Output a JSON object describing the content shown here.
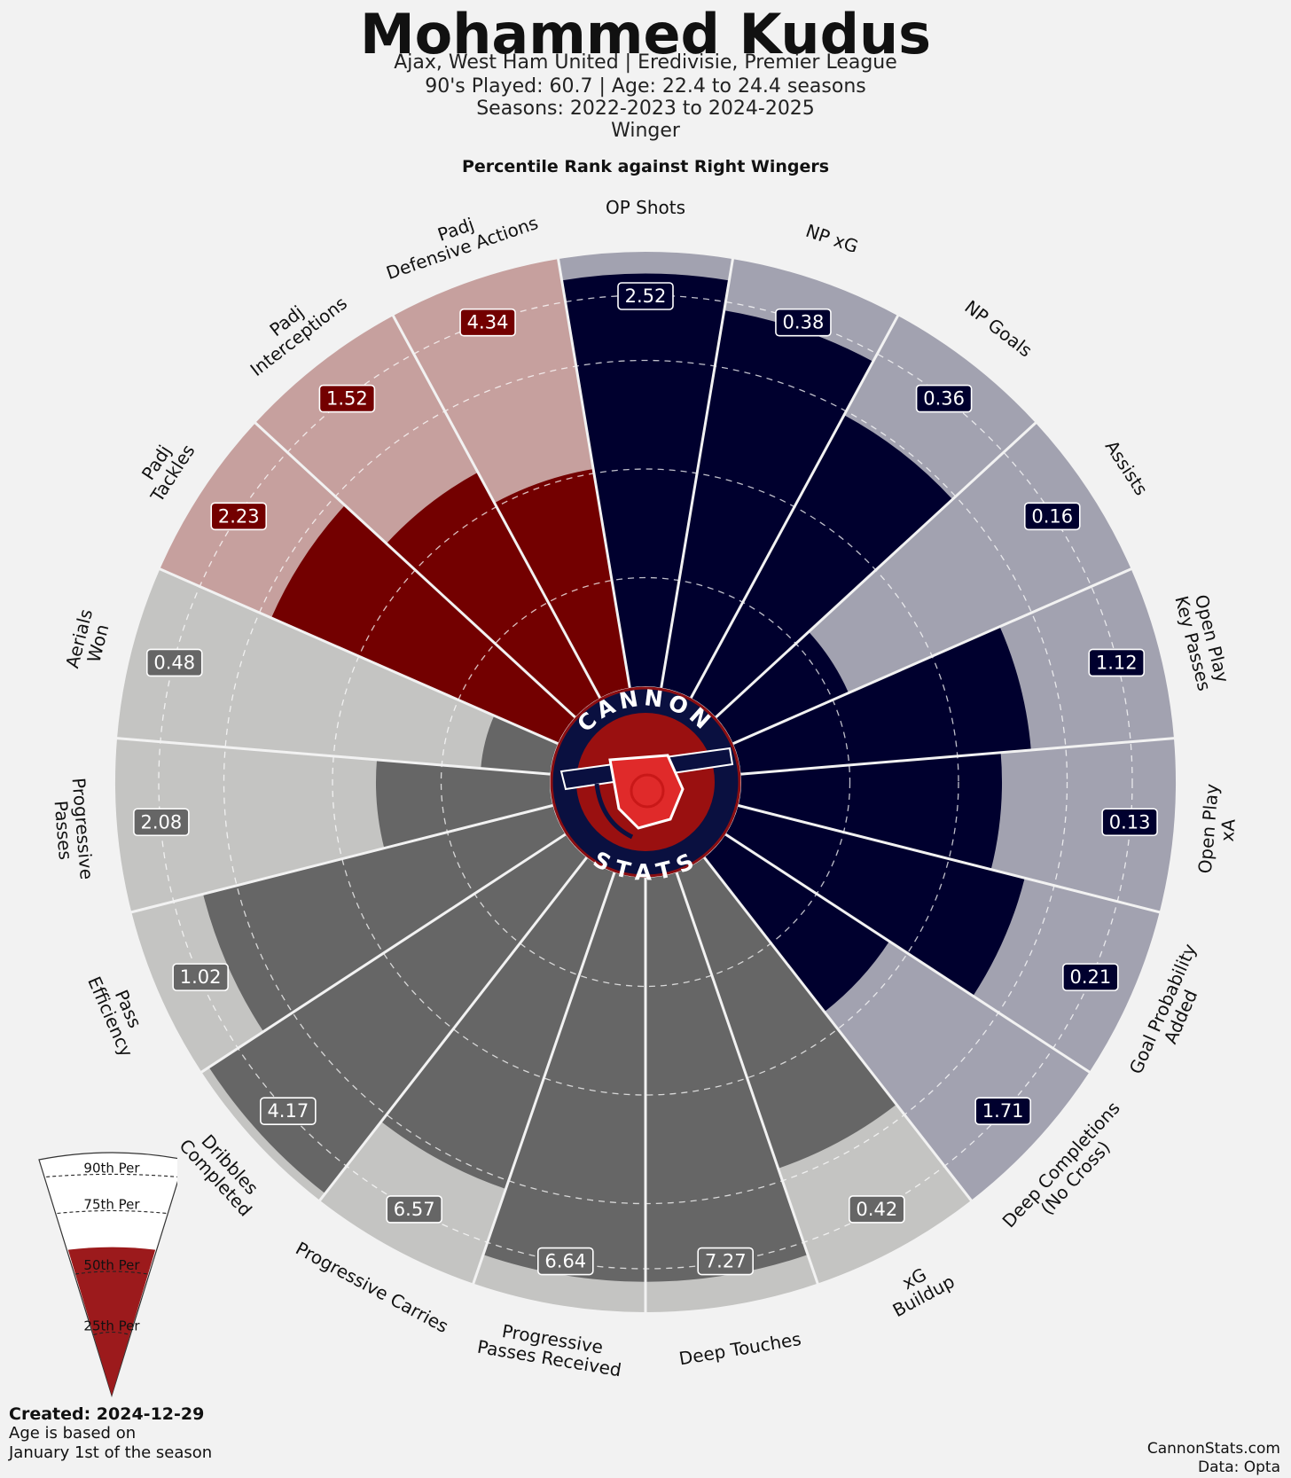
{
  "header": {
    "title": "Mohammed Kudus",
    "line1": "Ajax, West Ham United | Eredivisie, Premier League",
    "line2": "90's Played: 60.7 | Age: 22.4 to 24.4 seasons",
    "line3": "Seasons: 2022-2023 to 2024-2025",
    "line4": "Winger",
    "rank_label": "Percentile Rank against Right Wingers"
  },
  "logo": {
    "top_text": "CANNON",
    "bottom_text": "STATS"
  },
  "footer": {
    "created": "Created: 2024-12-29",
    "note1": "Age is based on",
    "note2": "January 1st of the season",
    "site": "CannonStats.com",
    "data": "Data: Opta"
  },
  "legend": {
    "p90": "90th Per",
    "p75": "75th Per",
    "p50": "50th Per",
    "p25": "25th Per",
    "fill_percentile": 60
  },
  "colors": {
    "attack": "#00002e",
    "attack_bg": "#a2a2b0",
    "defense": "#730000",
    "defense_bg": "#c6a09e",
    "possession": "#666666",
    "possession_bg": "#c4c4c2",
    "legend_fill": "#9c1a1c"
  },
  "chart_data": {
    "type": "radar",
    "title": "Percentile Rank against Right Wingers",
    "scale": [
      0,
      100
    ],
    "gridlines": [
      25,
      50,
      75,
      90
    ],
    "metrics": [
      {
        "label": "OP Shots",
        "value": "2.52",
        "percentile": 95,
        "group": "attack"
      },
      {
        "label": "NP xG",
        "value": "0.38",
        "percentile": 88,
        "group": "attack"
      },
      {
        "label": "NP Goals",
        "value": "0.36",
        "percentile": 74,
        "group": "attack"
      },
      {
        "label": "Assists",
        "value": "0.16",
        "percentile": 29,
        "group": "attack"
      },
      {
        "label": "Open Play\nKey Passes",
        "value": "1.12",
        "percentile": 67,
        "group": "attack"
      },
      {
        "label": "Open Play\nxA",
        "value": "0.13",
        "percentile": 60,
        "group": "attack"
      },
      {
        "label": "Goal Probability\nAdded",
        "value": "0.21",
        "percentile": 68,
        "group": "attack"
      },
      {
        "label": "Deep Completions\n(No Cross)",
        "value": "1.71",
        "percentile": 45,
        "group": "attack"
      },
      {
        "label": "xG\nBuildup",
        "value": "0.42",
        "percentile": 72,
        "group": "possession"
      },
      {
        "label": "Deep Touches",
        "value": "7.27",
        "percentile": 93,
        "group": "possession"
      },
      {
        "label": "Progressive\nPasses Received",
        "value": "6.64",
        "percentile": 93,
        "group": "possession"
      },
      {
        "label": "Progressive Carries",
        "value": "6.57",
        "percentile": 77,
        "group": "possession"
      },
      {
        "label": "Dribbles\nCompleted",
        "value": "4.17",
        "percentile": 98,
        "group": "possession"
      },
      {
        "label": "Pass\nEfficiency",
        "value": "1.02",
        "percentile": 83,
        "group": "possession"
      },
      {
        "label": "Progressive\nPasses",
        "value": "2.08",
        "percentile": 40,
        "group": "possession"
      },
      {
        "label": "Aerials\nWon",
        "value": "0.48",
        "percentile": 16,
        "group": "possession"
      },
      {
        "label": "Padj\nTackles",
        "value": "2.23",
        "percentile": 72,
        "group": "defense"
      },
      {
        "label": "Padj\nInterceptions",
        "value": "1.52",
        "percentile": 59,
        "group": "defense"
      },
      {
        "label": "Padj\nDefensive Actions",
        "value": "4.34",
        "percentile": 51,
        "group": "defense"
      }
    ]
  }
}
